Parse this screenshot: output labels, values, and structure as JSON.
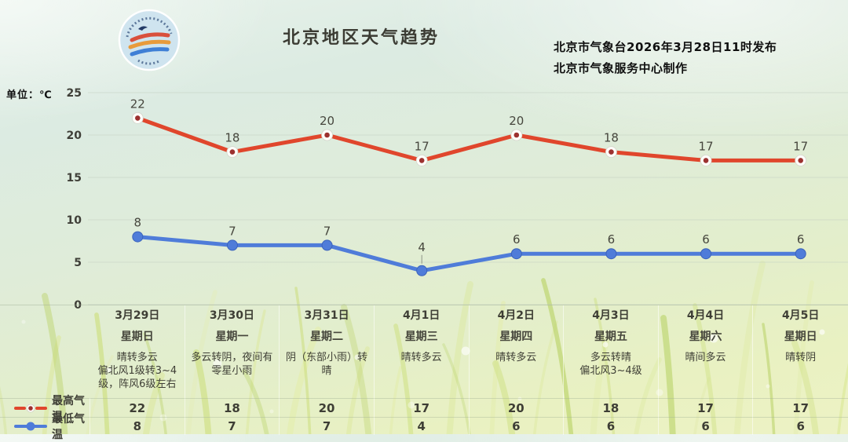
{
  "header": {
    "title": "北京地区天气趋势",
    "publisher_line1": "北京市气象台2026年3月28日11时发布",
    "publisher_line2": "北京市气象服务中心制作",
    "unit_label": "单位：℃",
    "logo_name": "beijing-meteorological-service-logo"
  },
  "chart_data": {
    "type": "line",
    "categories": [
      "3月29日",
      "3月30日",
      "3月31日",
      "4月1日",
      "4月2日",
      "4月3日",
      "4月4日",
      "4月5日"
    ],
    "series": [
      {
        "name": "最高气温",
        "color": "#e0462c",
        "marker_core": "#9c3130",
        "marker": "open-dot",
        "values": [
          22,
          18,
          20,
          17,
          20,
          18,
          17,
          17
        ]
      },
      {
        "name": "最低气温",
        "color": "#4f7cd9",
        "marker_core": "#3b63bb",
        "marker": "filled-dot",
        "values": [
          8,
          7,
          7,
          4,
          6,
          6,
          6,
          6
        ]
      }
    ],
    "ylabel": "单位：℃",
    "ylim": [
      0,
      25
    ],
    "yticks": [
      0,
      5,
      10,
      15,
      20,
      25
    ],
    "grid": true,
    "data_labels": true,
    "callout": {
      "series": 1,
      "index": 3
    },
    "legend_position": "bottom-left"
  },
  "table": {
    "legend": [
      {
        "label": "最高气温",
        "color": "#e0462c",
        "core": "#9c3130",
        "style": "dash-dot"
      },
      {
        "label": "最低气温",
        "color": "#4f7cd9",
        "core": "#4f7cd9",
        "style": "line-dot"
      }
    ],
    "columns": [
      {
        "date": "3月29日",
        "weekday": "星期日",
        "weather": "晴转多云\n偏北风1级转3~4级，阵风6级左右",
        "high": "22",
        "low": "8"
      },
      {
        "date": "3月30日",
        "weekday": "星期一",
        "weather": "多云转阴，夜间有零星小雨",
        "high": "18",
        "low": "7"
      },
      {
        "date": "3月31日",
        "weekday": "星期二",
        "weather": "阴（东部小雨）转晴",
        "high": "20",
        "low": "7"
      },
      {
        "date": "4月1日",
        "weekday": "星期三",
        "weather": "晴转多云",
        "high": "17",
        "low": "4"
      },
      {
        "date": "4月2日",
        "weekday": "星期四",
        "weather": "晴转多云",
        "high": "20",
        "low": "6"
      },
      {
        "date": "4月3日",
        "weekday": "星期五",
        "weather": "多云转晴\n偏北风3~4级",
        "high": "18",
        "low": "6"
      },
      {
        "date": "4月4日",
        "weekday": "星期六",
        "weather": "晴间多云",
        "high": "17",
        "low": "6"
      },
      {
        "date": "4月5日",
        "weekday": "星期日",
        "weather": "晴转阴",
        "high": "17",
        "low": "6"
      }
    ]
  }
}
